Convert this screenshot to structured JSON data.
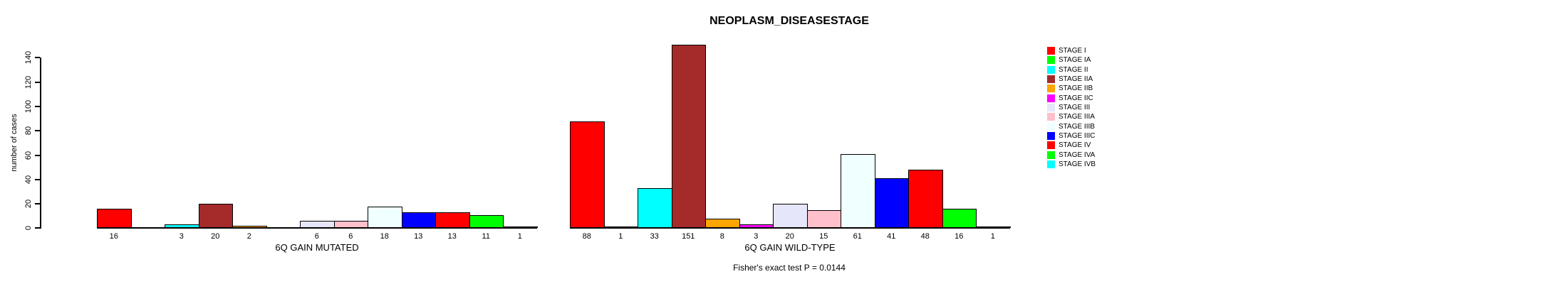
{
  "chart_data": {
    "type": "bar",
    "title": "NEOPLASM_DISEASESTAGE",
    "ylabel": "number of cases",
    "xlabel": "",
    "ylim": [
      0,
      140
    ],
    "yticks": [
      0,
      20,
      40,
      60,
      80,
      100,
      120,
      140
    ],
    "grid": false,
    "legend_position": "right",
    "bar_border_color": "#000000",
    "categories": [
      "STAGE I",
      "STAGE IA",
      "STAGE II",
      "STAGE IIA",
      "STAGE IIB",
      "STAGE IIC",
      "STAGE III",
      "STAGE IIIA",
      "STAGE IIIB",
      "STAGE IIIC",
      "STAGE IV",
      "STAGE IVA",
      "STAGE IVB"
    ],
    "colors": [
      "#FF0000",
      "#00FF00",
      "#00FFFF",
      "#A52A2A",
      "#FFA500",
      "#FF00FF",
      "#E6E6FA",
      "#FFC0CB",
      "#F0FFFF",
      "#0000FF",
      "#FF0000",
      "#00FF00",
      "#00FFFF"
    ],
    "series": [
      {
        "name": "6Q GAIN MUTATED",
        "values": [
          16,
          0,
          3,
          20,
          2,
          0,
          6,
          6,
          18,
          13,
          13,
          11,
          1
        ]
      },
      {
        "name": "6Q GAIN WILD-TYPE",
        "values": [
          88,
          1,
          33,
          151,
          8,
          3,
          20,
          15,
          61,
          41,
          48,
          16,
          1
        ]
      }
    ],
    "groups": [
      {
        "label": "6Q GAIN MUTATED"
      },
      {
        "label": "6Q GAIN WILD-TYPE"
      }
    ],
    "bar_value_labels_note": "each nonzero bar labeled with its value below the baseline",
    "footnote": "Fisher's exact test P = 0.0144"
  }
}
